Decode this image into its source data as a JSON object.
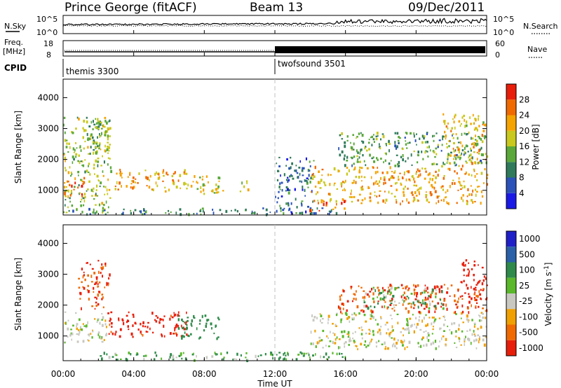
{
  "header": {
    "station": "Prince George (fitACF)",
    "beam": "Beam 13",
    "date": "09/Dec/2011"
  },
  "noise_panel": {
    "left_label": "N.Sky",
    "right_label": "N.Search",
    "tick_top": "10^5",
    "tick_bottom": "10^0",
    "right_tick_top": "10^5",
    "right_tick_bottom": "10^0"
  },
  "freq_panel": {
    "left_label_1": "Freq.",
    "left_label_2": "[MHz]",
    "right_label": "Nave",
    "left_ticks": [
      "18",
      "8"
    ],
    "right_ticks": [
      "60",
      "0"
    ]
  },
  "cpid": {
    "label": "CPID",
    "modes": [
      {
        "name": "themis 3300",
        "start_hour": 0
      },
      {
        "name": "twofsound 3501",
        "start_hour": 12
      }
    ]
  },
  "chart_data": [
    {
      "type": "heatmap",
      "name": "power",
      "ylabel": "Slant Range [km]",
      "xlabel": "",
      "xlim_hours": [
        0,
        24
      ],
      "ylim": [
        200,
        4600
      ],
      "yticks": [
        "1000",
        "2000",
        "3000",
        "4000"
      ],
      "colorbar_label": "Power [dB]",
      "colorbar_ticks": [
        "4",
        "8",
        "12",
        "16",
        "20",
        "24",
        "28"
      ],
      "colorbar_colors": [
        "#1a1ae6",
        "#2a52b8",
        "#2f7a5a",
        "#5aa83a",
        "#c8c81e",
        "#f5a300",
        "#f06a00",
        "#e81e0a"
      ],
      "regions": [
        {
          "t0": 0.0,
          "t1": 2.7,
          "r0": 300,
          "r1": 3400,
          "level": 18
        },
        {
          "t0": 0.0,
          "t1": 1.2,
          "r0": 800,
          "r1": 1500,
          "level": 27
        },
        {
          "t0": 1.3,
          "t1": 2.6,
          "r0": 2200,
          "r1": 3300,
          "level": 16
        },
        {
          "t0": 2.5,
          "t1": 7.0,
          "r0": 1000,
          "r1": 1700,
          "level": 24
        },
        {
          "t0": 6.8,
          "t1": 9.2,
          "r0": 900,
          "r1": 1500,
          "level": 20
        },
        {
          "t0": 10.0,
          "t1": 10.5,
          "r0": 900,
          "r1": 1400,
          "level": 22
        },
        {
          "t0": 0.0,
          "t1": 15.5,
          "r0": 250,
          "r1": 450,
          "level": 12
        },
        {
          "t0": 12.0,
          "t1": 14.2,
          "r0": 300,
          "r1": 2100,
          "level": 10
        },
        {
          "t0": 13.9,
          "t1": 16.0,
          "r0": 350,
          "r1": 700,
          "level": 29
        },
        {
          "t0": 14.0,
          "t1": 24.0,
          "r0": 600,
          "r1": 1800,
          "level": 24
        },
        {
          "t0": 15.5,
          "t1": 24.0,
          "r0": 1800,
          "r1": 2900,
          "level": 14
        },
        {
          "t0": 21.5,
          "t1": 24.0,
          "r0": 1800,
          "r1": 3500,
          "level": 22
        }
      ]
    },
    {
      "type": "heatmap",
      "name": "velocity",
      "ylabel": "Slant Range [km]",
      "xlabel": "Time UT",
      "xlim_hours": [
        0,
        24
      ],
      "ylim": [
        200,
        4600
      ],
      "yticks": [
        "1000",
        "2000",
        "3000",
        "4000"
      ],
      "xticks": [
        "00:00",
        "04:00",
        "08:00",
        "12:00",
        "16:00",
        "20:00",
        "00:00"
      ],
      "colorbar_label": "Velocity [m s^-1]",
      "colorbar_ticks": [
        "1000",
        "500",
        "100",
        "25",
        "-25",
        "-100",
        "-500",
        "-1000"
      ],
      "colorbar_colors": [
        "#2020c8",
        "#2a60a8",
        "#2e8a4a",
        "#5ab82a",
        "#c8c8c0",
        "#f0a000",
        "#f06a00",
        "#e81e0a"
      ],
      "regions": [
        {
          "t0": 0.0,
          "t1": 2.5,
          "r0": 800,
          "r1": 1800,
          "vel": 0
        },
        {
          "t0": 0.8,
          "t1": 2.6,
          "r0": 1900,
          "r1": 3500,
          "vel": -300
        },
        {
          "t0": 2.5,
          "t1": 7.0,
          "r0": 1000,
          "r1": 1800,
          "vel": -350
        },
        {
          "t0": 6.5,
          "t1": 8.8,
          "r0": 900,
          "r1": 1700,
          "vel": 150
        },
        {
          "t0": 2.0,
          "t1": 15.0,
          "r0": 250,
          "r1": 500,
          "vel": 60
        },
        {
          "t0": 12.0,
          "t1": 16.0,
          "r0": 250,
          "r1": 500,
          "vel": 80
        },
        {
          "t0": 14.0,
          "t1": 24.0,
          "r0": 600,
          "r1": 1800,
          "vel": 0
        },
        {
          "t0": 15.5,
          "t1": 24.0,
          "r0": 1800,
          "r1": 2700,
          "vel": -300
        },
        {
          "t0": 17.0,
          "t1": 21.5,
          "r0": 1900,
          "r1": 2600,
          "vel": 60
        },
        {
          "t0": 22.5,
          "t1": 24.0,
          "r0": 2200,
          "r1": 3500,
          "vel": -500
        }
      ]
    }
  ]
}
